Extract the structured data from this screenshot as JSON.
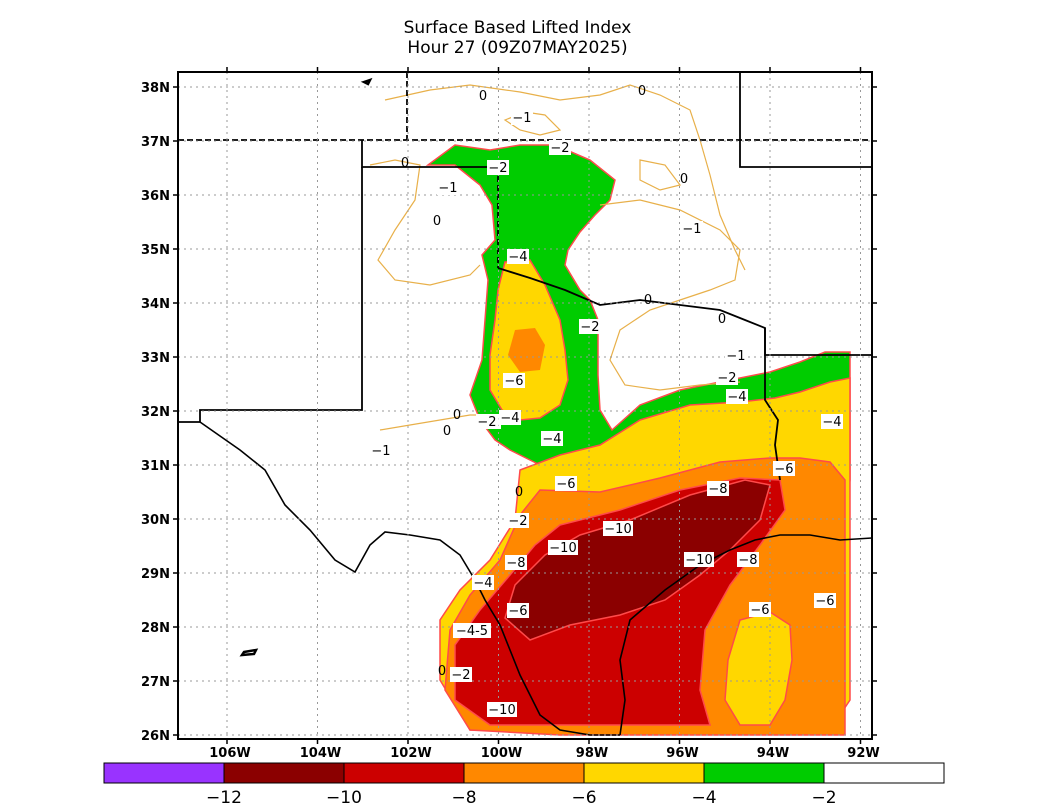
{
  "title": {
    "line1": "Surface Based Lifted Index",
    "line2": "Hour 27 (09Z07MAY2025)"
  },
  "axes": {
    "lat_labels": [
      "38N",
      "37N",
      "36N",
      "35N",
      "34N",
      "33N",
      "32N",
      "31N",
      "30N",
      "29N",
      "28N",
      "27N",
      "26N"
    ],
    "lon_labels": [
      "106W",
      "104W",
      "102W",
      "100W",
      "98W",
      "96W",
      "94W",
      "92W"
    ]
  },
  "contour_labels": [
    "0",
    "-1",
    "0",
    "-2",
    "-2",
    "0",
    "-1",
    "0",
    "-1",
    "0",
    "-1",
    "-4",
    "0",
    "-2",
    "0",
    "-1",
    "-2",
    "-6",
    "-2",
    "-4",
    "0",
    "0",
    "-2",
    "-4",
    "-1",
    "-4",
    "-4",
    "-6",
    "-6",
    "-8",
    "0",
    "-2",
    "-10",
    "-10",
    "-10",
    "-8",
    "-8",
    "-4",
    "-6",
    "-4-5",
    "-6",
    "-6",
    "-2",
    "-10",
    "0"
  ],
  "colorbar": {
    "tick_labels": [
      "-12",
      "-10",
      "-8",
      "-6",
      "-4",
      "-2"
    ],
    "colors": [
      "#9933ff",
      "#8b0000",
      "#cc0000",
      "#ff8800",
      "#ffd700",
      "#00cc00",
      "#ffffff"
    ]
  },
  "colors": {
    "contour_positive": "#e8b04a",
    "contour_negative": "#ff4a4a",
    "li_minus_2": "#00cc00",
    "li_minus_4": "#ffd700",
    "li_minus_6": "#ff8800",
    "li_minus_8": "#cc0000",
    "li_minus_10": "#8b0000"
  }
}
